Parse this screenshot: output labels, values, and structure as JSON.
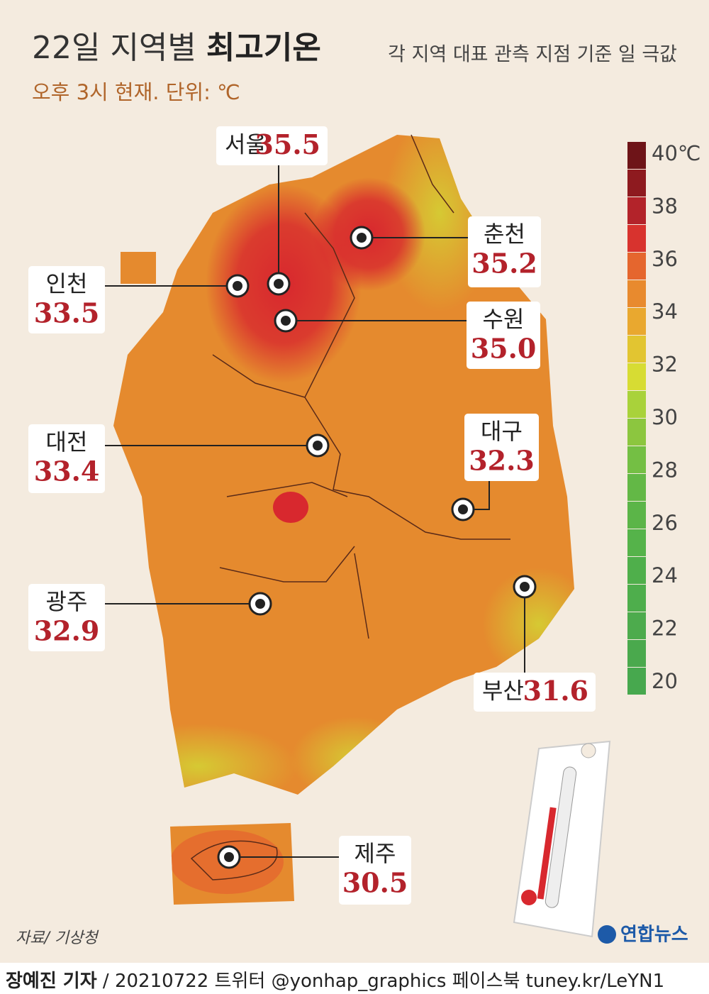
{
  "header": {
    "title": "22일 지역별",
    "title_bold": "최고기온",
    "subtitle": "각 지역 대표 관측 지점 기준 일 극값",
    "note": "오후 3시 현재. 단위: ℃"
  },
  "cities": [
    {
      "name": "서울",
      "value": "35.5"
    },
    {
      "name": "춘천",
      "value": "35.2"
    },
    {
      "name": "인천",
      "value": "33.5"
    },
    {
      "name": "수원",
      "value": "35.0"
    },
    {
      "name": "대전",
      "value": "33.4"
    },
    {
      "name": "대구",
      "value": "32.3"
    },
    {
      "name": "광주",
      "value": "32.9"
    },
    {
      "name": "부산",
      "value": "31.6"
    },
    {
      "name": "제주",
      "value": "30.5"
    }
  ],
  "legend": {
    "ticks": [
      {
        "value": 40,
        "label": "40℃"
      },
      38,
      36,
      34,
      32,
      30,
      28,
      26,
      24,
      22,
      20
    ],
    "colors": [
      "#6e1418",
      "#8e1a1f",
      "#b3232a",
      "#d8332e",
      "#e5662e",
      "#e88a2e",
      "#e9a82f",
      "#e2c531",
      "#d7dc33",
      "#a9d23a",
      "#8cc63f",
      "#74bf44",
      "#63b846",
      "#5bb548",
      "#55b34a",
      "#4faf4b",
      "#4eae4c",
      "#4dab4d",
      "#4aa94d",
      "#47a84e"
    ]
  },
  "source": "자료/ 기상청",
  "logo": "연합뉴스",
  "footer": {
    "author": "장예진 기자",
    "info": "/ 20210722 트위터 @yonhap_graphics  페이스북 tuney.kr/LeYN1"
  }
}
